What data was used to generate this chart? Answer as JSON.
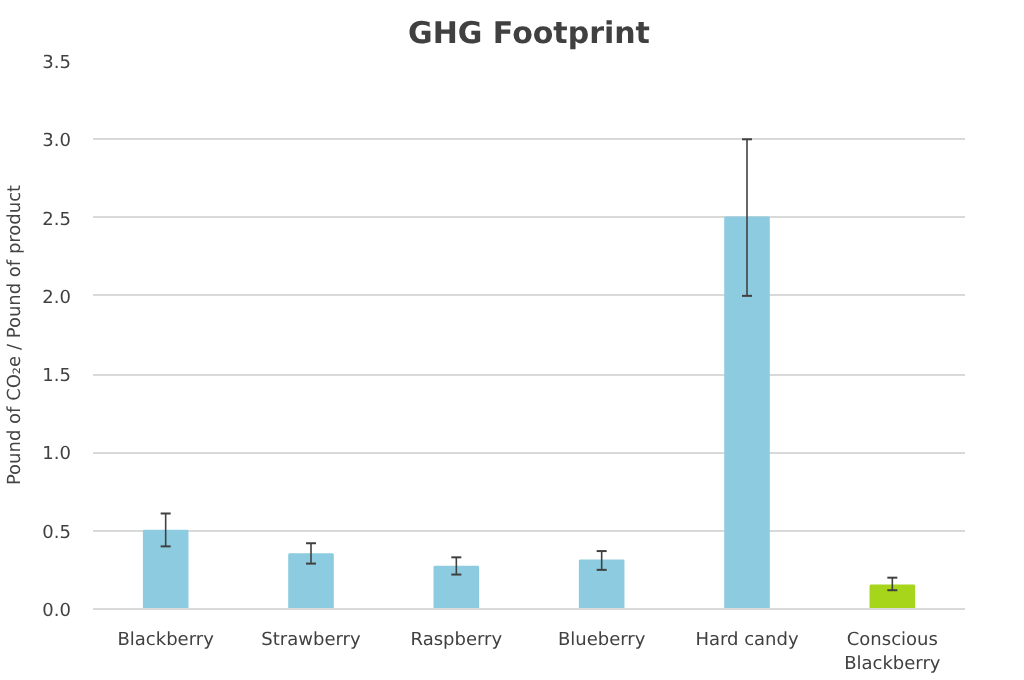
{
  "chart_data": {
    "type": "bar",
    "title": "GHG Footprint",
    "ylabel": "Pound of CO₂e / Pound of product",
    "categories": [
      "Blackberry",
      "Strawberry",
      "Raspberry",
      "Blueberry",
      "Hard candy",
      "Conscious Blackberry"
    ],
    "values": [
      0.5,
      0.35,
      0.27,
      0.31,
      2.5,
      0.15
    ],
    "errors": [
      [
        0.4,
        0.61
      ],
      [
        0.29,
        0.42
      ],
      [
        0.22,
        0.33
      ],
      [
        0.25,
        0.37
      ],
      [
        2.0,
        3.0
      ],
      [
        0.12,
        0.2
      ]
    ],
    "colors": [
      "#8ccbe0",
      "#8ccbe0",
      "#8ccbe0",
      "#8ccbe0",
      "#8ccbe0",
      "#a6d51c"
    ],
    "ylim": [
      0,
      3.5
    ],
    "yticks": [
      {
        "value": 0,
        "label": "0.0"
      },
      {
        "value": 0.5,
        "label": "0.5"
      },
      {
        "value": 1,
        "label": "1.0"
      },
      {
        "value": 1.5,
        "label": "1.5"
      },
      {
        "value": 2,
        "label": "2.0"
      },
      {
        "value": 2.5,
        "label": "2.5"
      },
      {
        "value": 3,
        "label": "3.0"
      },
      {
        "value": 3.5,
        "label": "3.5"
      }
    ],
    "grid": "y"
  }
}
